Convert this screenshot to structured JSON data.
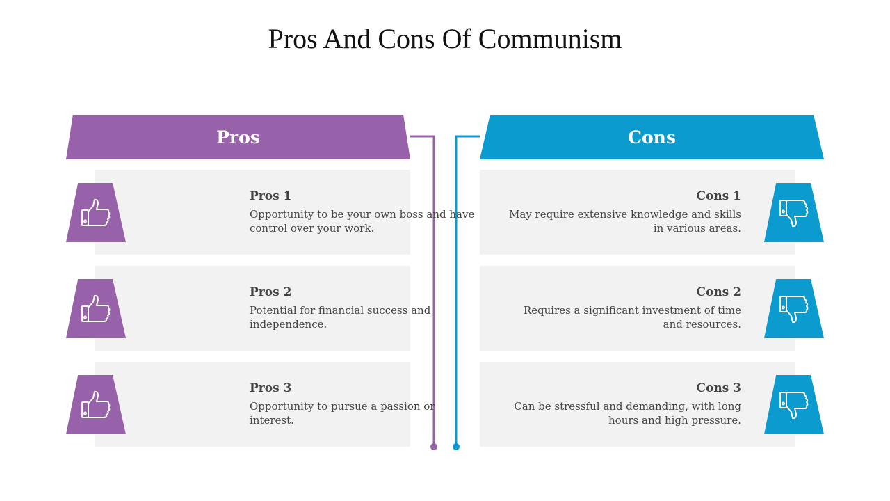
{
  "title": "Pros And Cons Of Communism",
  "colors": {
    "pros": "#9762AA",
    "cons": "#0B9BCF"
  },
  "pros": {
    "header": "Pros",
    "items": [
      {
        "title": "Pros 1",
        "text": "Opportunity to be your own boss and have control over your work.",
        "icon": "thumbs-up-icon"
      },
      {
        "title": "Pros 2",
        "text": "Potential for financial success and independence.",
        "icon": "thumbs-up-icon"
      },
      {
        "title": "Pros 3",
        "text": "Opportunity to pursue a passion or interest.",
        "icon": "thumbs-up-icon"
      }
    ]
  },
  "cons": {
    "header": "Cons",
    "items": [
      {
        "title": "Cons 1",
        "text": "May require extensive knowledge and skills in various areas.",
        "icon": "thumbs-down-icon"
      },
      {
        "title": "Cons 2",
        "text": "Requires a significant investment of time and resources.",
        "icon": "thumbs-down-icon"
      },
      {
        "title": "Cons 3",
        "text": "Can be stressful and demanding, with long hours and high pressure.",
        "icon": "thumbs-down-icon"
      }
    ]
  }
}
